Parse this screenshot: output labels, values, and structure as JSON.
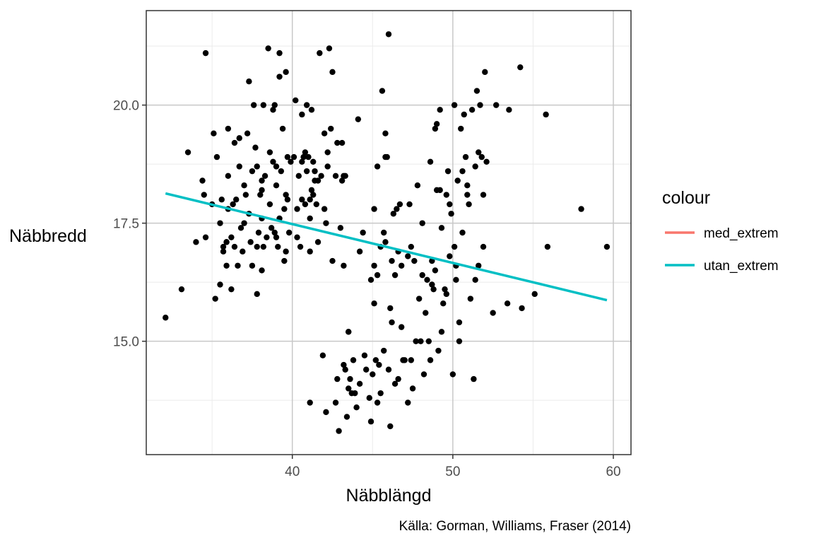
{
  "chart_data": {
    "type": "scatter",
    "xlabel": "Näbblängd",
    "ylabel": "Näbbredd",
    "caption": "Källa: Gorman, Williams, Fraser (2014)",
    "xlim": [
      30.9,
      61.1
    ],
    "ylim": [
      12.6,
      22.0
    ],
    "x_ticks": [
      40,
      50,
      60
    ],
    "x_tick_labels": [
      "40",
      "50",
      "60"
    ],
    "y_ticks": [
      15.0,
      17.5,
      20.0
    ],
    "y_tick_labels": [
      "15.0",
      "17.5",
      "20.0"
    ],
    "grid": true,
    "legend": {
      "title": "colour",
      "position": "right",
      "entries": [
        {
          "label": "med_extrem",
          "color": "#F8766D"
        },
        {
          "label": "utan_extrem",
          "color": "#00BFC4"
        }
      ]
    },
    "point_color": "#000000",
    "lines": [
      {
        "name": "utan_extrem",
        "color": "#00BFC4",
        "x": [
          32.1,
          59.6
        ],
        "y": [
          18.13,
          15.87
        ]
      }
    ],
    "points": [
      [
        32.1,
        15.5
      ],
      [
        33.1,
        16.1
      ],
      [
        33.5,
        19.0
      ],
      [
        34.0,
        17.1
      ],
      [
        34.4,
        18.4
      ],
      [
        34.5,
        18.1
      ],
      [
        34.6,
        17.2
      ],
      [
        34.6,
        21.1
      ],
      [
        35.0,
        17.9
      ],
      [
        35.1,
        19.4
      ],
      [
        35.2,
        15.9
      ],
      [
        35.3,
        18.9
      ],
      [
        35.5,
        17.5
      ],
      [
        35.5,
        16.2
      ],
      [
        35.6,
        18.0
      ],
      [
        35.7,
        17.0
      ],
      [
        35.7,
        16.9
      ],
      [
        35.9,
        17.1
      ],
      [
        35.9,
        16.6
      ],
      [
        36.0,
        19.5
      ],
      [
        36.0,
        18.5
      ],
      [
        36.0,
        17.8
      ],
      [
        36.2,
        17.2
      ],
      [
        36.2,
        16.1
      ],
      [
        36.4,
        17.0
      ],
      [
        36.4,
        19.2
      ],
      [
        36.5,
        18.0
      ],
      [
        36.6,
        16.6
      ],
      [
        36.7,
        18.7
      ],
      [
        36.7,
        19.3
      ],
      [
        36.8,
        17.4
      ],
      [
        36.9,
        16.9
      ],
      [
        37.0,
        18.3
      ],
      [
        37.1,
        18.1
      ],
      [
        37.2,
        19.4
      ],
      [
        37.3,
        17.7
      ],
      [
        37.3,
        20.5
      ],
      [
        37.4,
        17.1
      ],
      [
        37.5,
        16.6
      ],
      [
        37.5,
        18.6
      ],
      [
        37.7,
        19.1
      ],
      [
        37.8,
        17.0
      ],
      [
        37.8,
        18.7
      ],
      [
        37.8,
        16.0
      ],
      [
        38.0,
        18.1
      ],
      [
        38.1,
        17.6
      ],
      [
        38.1,
        16.5
      ],
      [
        38.2,
        20.0
      ],
      [
        38.2,
        17.0
      ],
      [
        38.3,
        18.5
      ],
      [
        38.4,
        17.2
      ],
      [
        38.5,
        21.2
      ],
      [
        38.6,
        17.9
      ],
      [
        38.6,
        19.0
      ],
      [
        38.7,
        17.4
      ],
      [
        38.8,
        18.8
      ],
      [
        38.9,
        17.3
      ],
      [
        38.9,
        20.0
      ],
      [
        39.0,
        18.7
      ],
      [
        39.1,
        17.0
      ],
      [
        39.2,
        21.1
      ],
      [
        39.2,
        20.6
      ],
      [
        39.3,
        18.6
      ],
      [
        39.4,
        19.5
      ],
      [
        39.5,
        16.7
      ],
      [
        39.5,
        17.8
      ],
      [
        39.6,
        18.1
      ],
      [
        39.6,
        20.7
      ],
      [
        39.7,
        18.9
      ],
      [
        39.8,
        17.3
      ],
      [
        39.9,
        18.8
      ],
      [
        40.1,
        18.9
      ],
      [
        40.2,
        20.1
      ],
      [
        40.3,
        17.2
      ],
      [
        40.4,
        18.5
      ],
      [
        40.5,
        17.0
      ],
      [
        40.6,
        18.0
      ],
      [
        40.7,
        18.9
      ],
      [
        40.8,
        19.0
      ],
      [
        40.9,
        18.6
      ],
      [
        41.0,
        18.9
      ],
      [
        41.1,
        17.6
      ],
      [
        41.1,
        16.9
      ],
      [
        41.1,
        13.7
      ],
      [
        41.2,
        19.9
      ],
      [
        41.2,
        18.2
      ],
      [
        41.3,
        18.8
      ],
      [
        41.4,
        18.6
      ],
      [
        41.5,
        17.9
      ],
      [
        41.6,
        18.4
      ],
      [
        41.7,
        21.1
      ],
      [
        41.8,
        18.5
      ],
      [
        41.9,
        14.7
      ],
      [
        42.0,
        19.4
      ],
      [
        42.1,
        13.5
      ],
      [
        42.1,
        17.5
      ],
      [
        42.2,
        18.7
      ],
      [
        42.3,
        21.2
      ],
      [
        42.4,
        19.5
      ],
      [
        42.5,
        20.7
      ],
      [
        42.5,
        16.7
      ],
      [
        42.7,
        13.7
      ],
      [
        42.7,
        18.5
      ],
      [
        42.8,
        14.2
      ],
      [
        42.9,
        13.1
      ],
      [
        43.0,
        17.4
      ],
      [
        43.1,
        19.2
      ],
      [
        43.2,
        14.5
      ],
      [
        43.2,
        16.6
      ],
      [
        43.3,
        14.4
      ],
      [
        43.3,
        18.5
      ],
      [
        43.4,
        13.4
      ],
      [
        43.5,
        15.2
      ],
      [
        43.5,
        14.0
      ],
      [
        43.6,
        14.2
      ],
      [
        43.7,
        13.9
      ],
      [
        43.8,
        14.6
      ],
      [
        43.9,
        13.9
      ],
      [
        44.0,
        13.6
      ],
      [
        44.1,
        19.7
      ],
      [
        44.2,
        14.1
      ],
      [
        44.4,
        17.3
      ],
      [
        44.5,
        14.7
      ],
      [
        44.6,
        14.4
      ],
      [
        44.8,
        13.8
      ],
      [
        44.9,
        13.3
      ],
      [
        45.0,
        14.3
      ],
      [
        45.1,
        16.6
      ],
      [
        45.1,
        15.8
      ],
      [
        45.2,
        14.6
      ],
      [
        45.3,
        18.7
      ],
      [
        45.3,
        13.7
      ],
      [
        45.4,
        14.5
      ],
      [
        45.5,
        17.0
      ],
      [
        45.5,
        13.9
      ],
      [
        45.6,
        20.3
      ],
      [
        45.7,
        17.3
      ],
      [
        45.7,
        14.8
      ],
      [
        45.8,
        18.9
      ],
      [
        45.9,
        18.9
      ],
      [
        46.0,
        14.4
      ],
      [
        46.0,
        21.5
      ],
      [
        46.1,
        13.2
      ],
      [
        46.2,
        15.4
      ],
      [
        46.3,
        17.7
      ],
      [
        46.4,
        14.1
      ],
      [
        46.5,
        17.8
      ],
      [
        46.6,
        14.2
      ],
      [
        46.7,
        17.9
      ],
      [
        46.8,
        15.3
      ],
      [
        46.9,
        14.6
      ],
      [
        47.0,
        14.6
      ],
      [
        47.2,
        13.7
      ],
      [
        47.4,
        14.6
      ],
      [
        47.5,
        14.0
      ],
      [
        47.7,
        15.0
      ],
      [
        47.8,
        18.3
      ],
      [
        48.0,
        15.0
      ],
      [
        48.1,
        16.4
      ],
      [
        48.2,
        14.3
      ],
      [
        48.3,
        15.6
      ],
      [
        48.4,
        16.3
      ],
      [
        48.5,
        15.0
      ],
      [
        48.6,
        14.6
      ],
      [
        48.7,
        16.2
      ],
      [
        48.8,
        16.1
      ],
      [
        48.9,
        19.5
      ],
      [
        49.0,
        18.2
      ],
      [
        49.1,
        14.8
      ],
      [
        49.2,
        19.9
      ],
      [
        49.3,
        15.2
      ],
      [
        49.4,
        15.8
      ],
      [
        49.5,
        16.1
      ],
      [
        49.6,
        16.0
      ],
      [
        49.7,
        18.6
      ],
      [
        49.8,
        17.9
      ],
      [
        49.9,
        17.7
      ],
      [
        50.0,
        14.3
      ],
      [
        50.1,
        20.0
      ],
      [
        50.2,
        16.3
      ],
      [
        50.3,
        18.4
      ],
      [
        50.4,
        15.0
      ],
      [
        50.5,
        19.5
      ],
      [
        50.6,
        17.3
      ],
      [
        50.7,
        19.8
      ],
      [
        50.8,
        18.9
      ],
      [
        50.9,
        18.1
      ],
      [
        51.0,
        17.9
      ],
      [
        51.1,
        15.9
      ],
      [
        51.2,
        19.9
      ],
      [
        51.3,
        14.2
      ],
      [
        51.4,
        18.7
      ],
      [
        51.5,
        20.3
      ],
      [
        51.6,
        19.0
      ],
      [
        51.7,
        20.0
      ],
      [
        51.8,
        18.9
      ],
      [
        51.9,
        17.0
      ],
      [
        52.0,
        20.7
      ],
      [
        52.1,
        18.8
      ],
      [
        52.5,
        15.6
      ],
      [
        52.7,
        20.0
      ],
      [
        53.4,
        15.8
      ],
      [
        53.5,
        19.9
      ],
      [
        54.2,
        20.8
      ],
      [
        54.3,
        15.7
      ],
      [
        55.1,
        16.0
      ],
      [
        55.8,
        19.8
      ],
      [
        55.9,
        17.0
      ],
      [
        58.0,
        17.8
      ],
      [
        59.6,
        17.0
      ],
      [
        49.0,
        19.6
      ],
      [
        48.1,
        17.5
      ],
      [
        47.3,
        17.9
      ],
      [
        46.6,
        16.9
      ],
      [
        44.9,
        16.3
      ],
      [
        46.2,
        16.7
      ],
      [
        47.6,
        16.7
      ],
      [
        48.7,
        16.7
      ],
      [
        50.4,
        15.4
      ],
      [
        51.4,
        16.3
      ],
      [
        51.6,
        16.6
      ],
      [
        50.1,
        17.0
      ],
      [
        49.3,
        17.4
      ],
      [
        48.9,
        16.5
      ],
      [
        47.2,
        16.8
      ],
      [
        46.4,
        16.4
      ],
      [
        45.3,
        16.4
      ],
      [
        44.2,
        16.9
      ],
      [
        43.5,
        15.2
      ],
      [
        46.1,
        15.7
      ],
      [
        46.8,
        16.6
      ],
      [
        47.9,
        15.9
      ],
      [
        49.8,
        16.8
      ],
      [
        50.2,
        16.6
      ],
      [
        51.9,
        18.1
      ],
      [
        50.9,
        18.3
      ],
      [
        50.6,
        18.6
      ],
      [
        49.6,
        18.1
      ],
      [
        49.2,
        18.2
      ],
      [
        48.6,
        18.8
      ],
      [
        47.4,
        17.0
      ],
      [
        45.8,
        17.1
      ],
      [
        45.1,
        17.8
      ],
      [
        45.8,
        19.4
      ],
      [
        37.6,
        20.0
      ],
      [
        38.8,
        19.9
      ],
      [
        40.6,
        19.8
      ],
      [
        40.9,
        20.0
      ],
      [
        42.2,
        19.0
      ],
      [
        39.2,
        17.6
      ],
      [
        40.8,
        17.9
      ],
      [
        41.3,
        18.1
      ],
      [
        39.7,
        18.0
      ],
      [
        38.1,
        18.2
      ],
      [
        37.9,
        17.3
      ],
      [
        37.0,
        17.5
      ],
      [
        36.3,
        17.9
      ],
      [
        35.9,
        17.1
      ],
      [
        41.4,
        18.4
      ],
      [
        41.6,
        17.1
      ],
      [
        42.0,
        17.8
      ],
      [
        43.1,
        18.4
      ],
      [
        41.1,
        18.0
      ],
      [
        39.6,
        16.9
      ],
      [
        39.0,
        17.2
      ],
      [
        38.1,
        18.4
      ],
      [
        40.3,
        17.8
      ],
      [
        40.6,
        18.8
      ],
      [
        42.8,
        19.2
      ],
      [
        43.2,
        18.5
      ],
      [
        39.0,
        18.3
      ]
    ]
  }
}
